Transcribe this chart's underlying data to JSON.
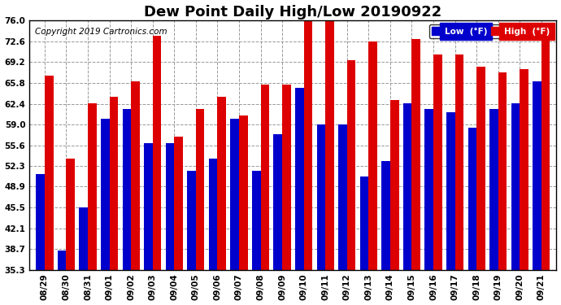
{
  "title": "Dew Point Daily High/Low 20190922",
  "copyright": "Copyright 2019 Cartronics.com",
  "dates": [
    "08/29",
    "08/30",
    "08/31",
    "09/01",
    "09/02",
    "09/03",
    "09/04",
    "09/05",
    "09/06",
    "09/07",
    "09/08",
    "09/09",
    "09/10",
    "09/11",
    "09/12",
    "09/13",
    "09/14",
    "09/15",
    "09/16",
    "09/17",
    "09/18",
    "09/19",
    "09/20",
    "09/21"
  ],
  "low_values": [
    51.0,
    38.5,
    45.5,
    60.0,
    61.5,
    56.0,
    56.0,
    51.5,
    53.5,
    60.0,
    51.5,
    57.5,
    65.0,
    59.0,
    59.0,
    50.5,
    53.0,
    62.5,
    61.5,
    61.0,
    58.5,
    61.5,
    62.5,
    66.0
  ],
  "high_values": [
    67.0,
    53.5,
    62.5,
    63.5,
    66.0,
    73.5,
    57.0,
    61.5,
    63.5,
    60.5,
    65.5,
    65.5,
    76.0,
    77.0,
    69.5,
    72.5,
    63.0,
    73.0,
    70.5,
    70.5,
    68.5,
    67.5,
    68.0,
    73.0
  ],
  "low_color": "#0000cc",
  "high_color": "#dd0000",
  "bg_color": "#ffffff",
  "grid_color": "#999999",
  "ytick_values": [
    35.3,
    38.7,
    42.1,
    45.5,
    48.9,
    52.3,
    55.6,
    59.0,
    62.4,
    65.8,
    69.2,
    72.6,
    76.0
  ],
  "ymin": 35.3,
  "ymax": 76.0,
  "legend_low_label": "Low  (°F)",
  "legend_high_label": "High  (°F)",
  "title_fontsize": 13,
  "copyright_fontsize": 7.5,
  "tick_fontsize": 7.5,
  "bar_width": 0.4
}
